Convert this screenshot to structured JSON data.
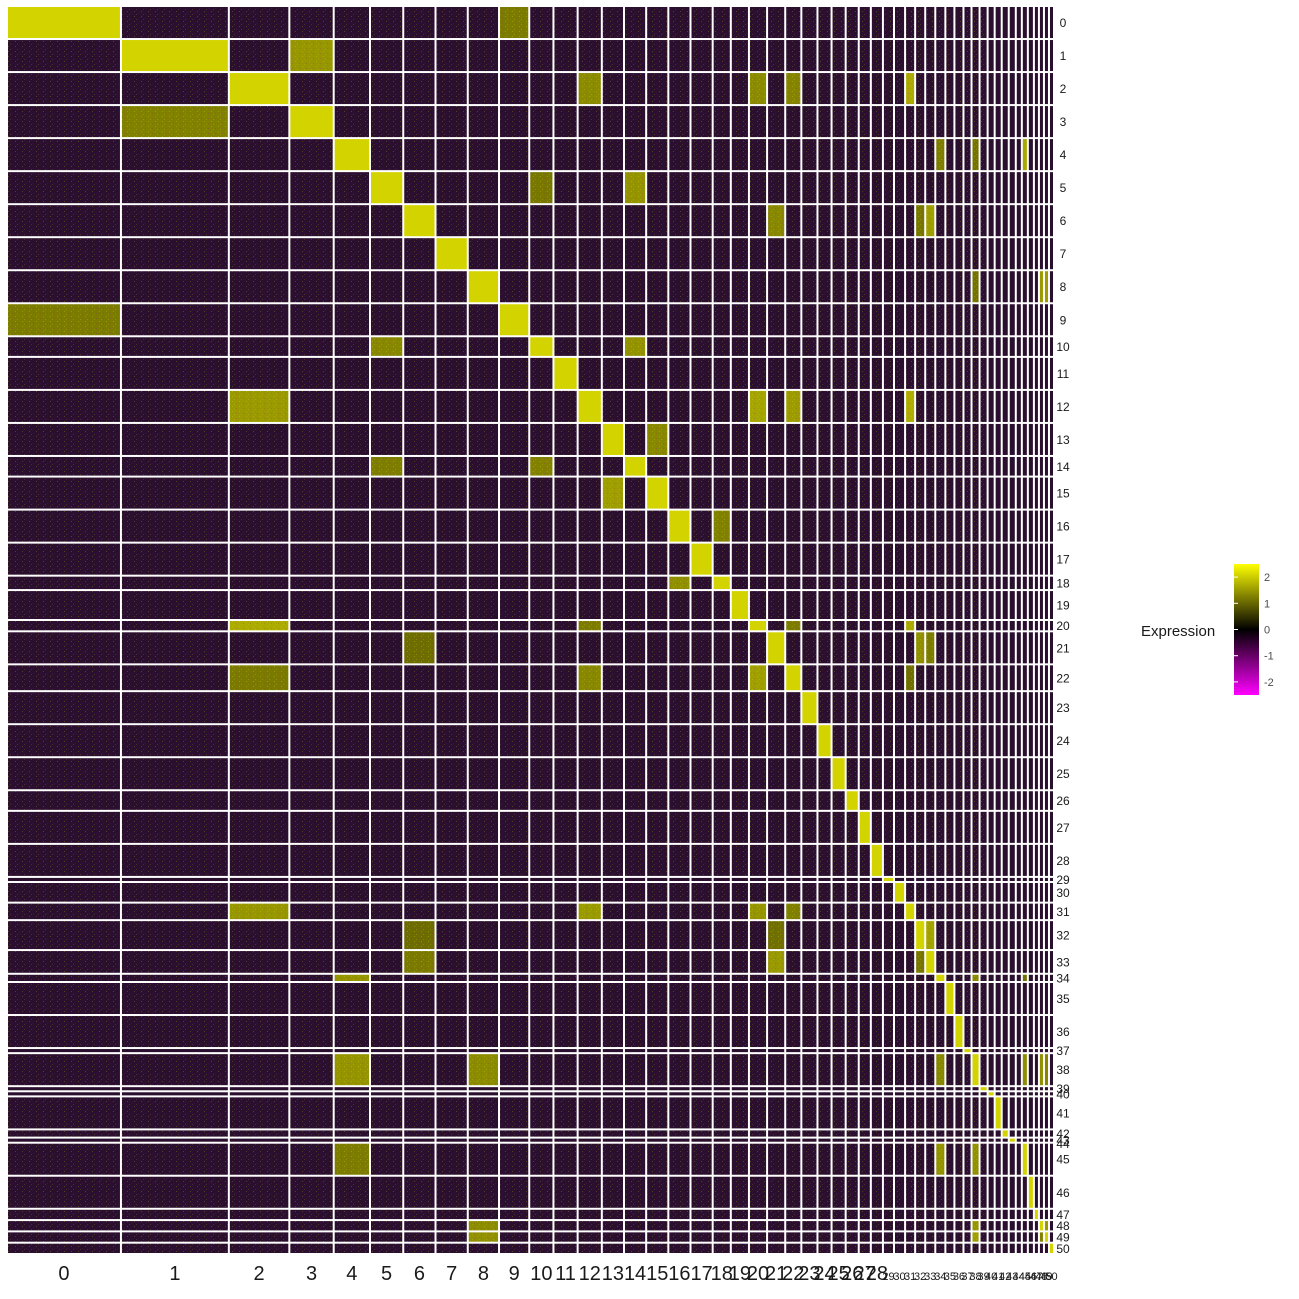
{
  "chart_data": {
    "type": "heatmap",
    "title": "",
    "xlabel": "",
    "ylabel": "",
    "x_clusters": [
      "0",
      "1",
      "2",
      "3",
      "4",
      "5",
      "6",
      "7",
      "8",
      "9",
      "10",
      "11",
      "12",
      "13",
      "14",
      "15",
      "16",
      "17",
      "18",
      "19",
      "20",
      "21",
      "22",
      "23",
      "24",
      "25",
      "26",
      "27",
      "28",
      "29",
      "30",
      "31",
      "32",
      "33",
      "34",
      "35",
      "36",
      "37",
      "38",
      "39",
      "40",
      "41",
      "42",
      "43",
      "44",
      "45",
      "46",
      "47",
      "48",
      "49",
      "50"
    ],
    "x_cluster_cell_fraction": [
      0.111,
      0.105,
      0.058,
      0.042,
      0.034,
      0.031,
      0.03,
      0.03,
      0.029,
      0.028,
      0.022,
      0.022,
      0.022,
      0.02,
      0.02,
      0.02,
      0.02,
      0.02,
      0.016,
      0.016,
      0.016,
      0.016,
      0.014,
      0.014,
      0.012,
      0.012,
      0.011,
      0.01,
      0.01,
      0.009,
      0.009,
      0.008,
      0.008,
      0.008,
      0.008,
      0.007,
      0.007,
      0.006,
      0.006,
      0.006,
      0.005,
      0.005,
      0.005,
      0.005,
      0.004,
      0.004,
      0.004,
      0.003,
      0.003,
      0.003,
      0.003
    ],
    "y_clusters": [
      "0",
      "1",
      "2",
      "3",
      "4",
      "5",
      "6",
      "7",
      "8",
      "9",
      "10",
      "11",
      "12",
      "13",
      "14",
      "15",
      "16",
      "17",
      "18",
      "19",
      "20",
      "21",
      "22",
      "23",
      "24",
      "25",
      "26",
      "27",
      "28",
      "29",
      "30",
      "31",
      "32",
      "33",
      "34",
      "35",
      "36",
      "37",
      "38",
      "39",
      "40",
      "41",
      "42",
      "43",
      "44",
      "45",
      "46",
      "47",
      "48",
      "49",
      "50"
    ],
    "y_marker_genes_per_cluster": [
      10,
      10,
      10,
      10,
      10,
      10,
      10,
      10,
      10,
      10,
      6,
      10,
      10,
      10,
      6,
      10,
      10,
      10,
      4,
      9,
      3,
      10,
      8,
      10,
      10,
      10,
      6,
      10,
      10,
      1,
      6,
      5,
      9,
      7,
      2,
      10,
      10,
      1,
      10,
      1,
      1,
      10,
      2,
      1,
      0,
      10,
      10,
      3,
      3,
      3,
      3
    ],
    "diagonal_expression": 2.0,
    "color_scale": {
      "title": "Expression",
      "ticks": [
        2,
        1,
        0,
        -1,
        -2
      ],
      "range": [
        -2.5,
        2.5
      ],
      "colors": {
        "low": "#ff00ff",
        "mid": "#000000",
        "high": "#ffff00"
      }
    },
    "related_cluster_groups": [
      [
        "0",
        "9"
      ],
      [
        "1",
        "3"
      ],
      [
        "2",
        "12",
        "20",
        "22",
        "31"
      ],
      [
        "4",
        "34",
        "45",
        "38"
      ],
      [
        "5",
        "10",
        "14"
      ],
      [
        "13",
        "15"
      ],
      [
        "16",
        "18"
      ],
      [
        "8",
        "38",
        "48",
        "49"
      ],
      [
        "6",
        "21",
        "32",
        "33"
      ]
    ],
    "background_color": "#2a0f2e",
    "grid_lines": "white"
  }
}
